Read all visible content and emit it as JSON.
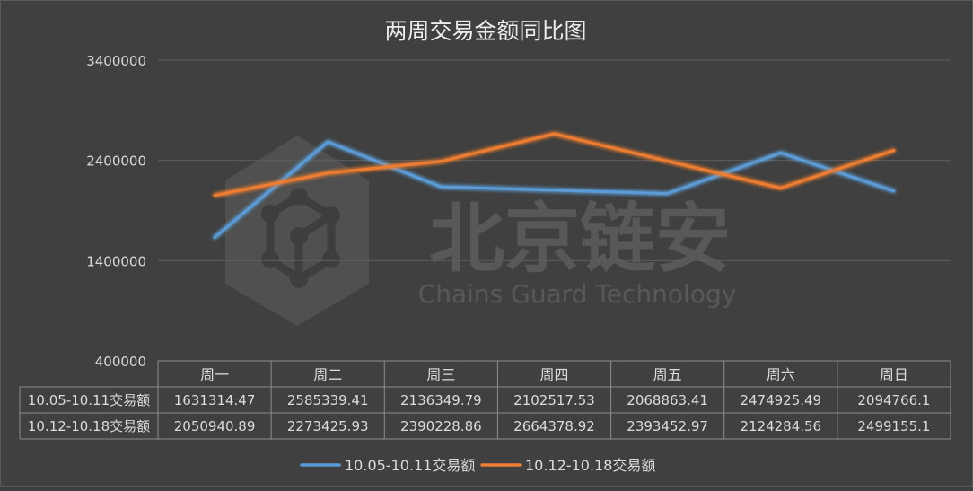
{
  "chart_data": {
    "type": "line",
    "title": "两周交易金额同比图",
    "categories": [
      "周一",
      "周二",
      "周三",
      "周四",
      "周五",
      "周六",
      "周日"
    ],
    "y_ticks": [
      "3400000",
      "2400000",
      "1400000",
      "400000"
    ],
    "ylim": [
      400000,
      3400000
    ],
    "grid": true,
    "legend_position": "bottom",
    "series": [
      {
        "name": "10.05-10.11交易额",
        "color": "#5b9bd5",
        "values": [
          1631314.47,
          2585339.41,
          2136349.79,
          2102517.53,
          2068863.41,
          2474925.49,
          2094766.1
        ],
        "labels": [
          "1631314.47",
          "2585339.41",
          "2136349.79",
          "2102517.53",
          "2068863.41",
          "2474925.49",
          "2094766.1"
        ]
      },
      {
        "name": "10.12-10.18交易额",
        "color": "#ed7d31",
        "values": [
          2050940.89,
          2273425.93,
          2390228.86,
          2664378.92,
          2393452.97,
          2124284.56,
          2499155.1
        ],
        "labels": [
          "2050940.89",
          "2273425.93",
          "2390228.86",
          "2664378.92",
          "2393452.97",
          "2124284.56",
          "2499155.1"
        ]
      }
    ]
  },
  "watermark": {
    "title": "北京链安",
    "subtitle": "Chains Guard Technology"
  }
}
